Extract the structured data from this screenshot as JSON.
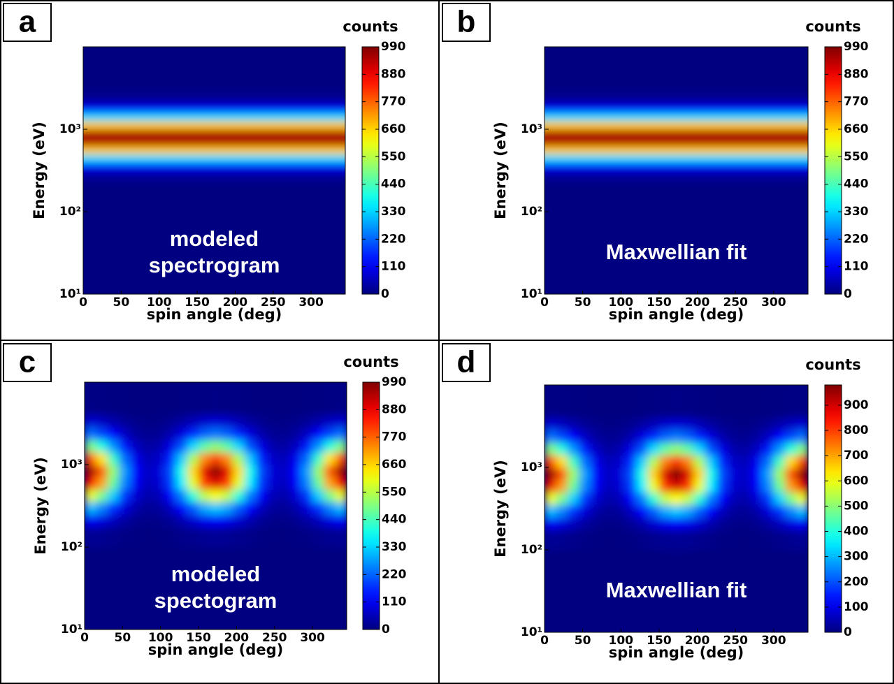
{
  "chart_data": [
    {
      "type": "heatmap",
      "panel": "a",
      "colorbar_label": "counts",
      "xlabel": "spin angle (deg)",
      "ylabel": "Energy (eV)",
      "annotation": [
        "modeled",
        "spectrogram"
      ],
      "colormap": "jet",
      "yscale": "log",
      "xlim": [
        0,
        345
      ],
      "ylim": [
        10,
        10000
      ],
      "xticks": [
        0,
        50,
        100,
        150,
        200,
        250,
        300
      ],
      "yticks": [
        {
          "value": 10,
          "label": "10¹"
        },
        {
          "value": 100,
          "label": "10²"
        },
        {
          "value": 1000,
          "label": "10³"
        }
      ],
      "clim": [
        0,
        990
      ],
      "cticks": [
        0,
        110,
        220,
        330,
        440,
        550,
        660,
        770,
        880,
        990
      ],
      "x": [
        0,
        345
      ],
      "y": [
        10,
        200,
        251,
        316,
        398,
        501,
        631,
        794,
        1000,
        1259,
        1585,
        1995,
        2512,
        3162,
        10000
      ],
      "z": [
        [
          0
        ],
        [
          5
        ],
        [
          30
        ],
        [
          119
        ],
        [
          336
        ],
        [
          673
        ],
        [
          948
        ],
        [
          948
        ],
        [
          673
        ],
        [
          336
        ],
        [
          119
        ],
        [
          30
        ],
        [
          5
        ],
        [
          0
        ]
      ]
    },
    {
      "type": "heatmap",
      "panel": "b",
      "colorbar_label": "counts",
      "xlabel": "spin angle (deg)",
      "ylabel": "Energy (eV)",
      "annotation": [
        "Maxwellian fit"
      ],
      "colormap": "jet",
      "yscale": "log",
      "xlim": [
        0,
        345
      ],
      "ylim": [
        10,
        10000
      ],
      "xticks": [
        0,
        50,
        100,
        150,
        200,
        250,
        300
      ],
      "yticks": [
        {
          "value": 10,
          "label": "10¹"
        },
        {
          "value": 100,
          "label": "10²"
        },
        {
          "value": 1000,
          "label": "10³"
        }
      ],
      "clim": [
        0,
        990
      ],
      "cticks": [
        0,
        110,
        220,
        330,
        440,
        550,
        660,
        770,
        880,
        990
      ],
      "x": [
        0,
        345
      ],
      "y": [
        10,
        200,
        251,
        316,
        398,
        501,
        631,
        794,
        1000,
        1259,
        1585,
        1995,
        2512,
        3162,
        10000
      ],
      "z": [
        [
          0
        ],
        [
          5
        ],
        [
          30
        ],
        [
          119
        ],
        [
          336
        ],
        [
          673
        ],
        [
          948
        ],
        [
          948
        ],
        [
          673
        ],
        [
          336
        ],
        [
          119
        ],
        [
          30
        ],
        [
          5
        ],
        [
          0
        ]
      ]
    },
    {
      "type": "heatmap",
      "panel": "c",
      "colorbar_label": "counts",
      "xlabel": "spin angle (deg)",
      "ylabel": "Energy (eV)",
      "annotation": [
        "modeled",
        "spectogram"
      ],
      "colormap": "jet",
      "yscale": "log",
      "xlim": [
        0,
        345
      ],
      "ylim": [
        10,
        10000
      ],
      "xticks": [
        0,
        50,
        100,
        150,
        200,
        250,
        300
      ],
      "yticks": [
        {
          "value": 10,
          "label": "10¹"
        },
        {
          "value": 100,
          "label": "10²"
        },
        {
          "value": 1000,
          "label": "10³"
        }
      ],
      "clim": [
        0,
        990
      ],
      "cticks": [
        0,
        110,
        220,
        330,
        440,
        550,
        660,
        770,
        880,
        990
      ],
      "x": [
        0,
        15,
        30,
        45,
        60,
        75,
        90,
        105,
        120,
        135,
        150,
        165,
        180,
        195,
        210,
        225,
        240,
        255,
        270,
        285,
        300,
        315,
        330,
        345
      ],
      "y": [
        10,
        100,
        178,
        251,
        355,
        501,
        708,
        1000,
        1413,
        1995,
        2818,
        3981,
        10000
      ],
      "z": [
        [
          0,
          0,
          0,
          0,
          0,
          0,
          0,
          0,
          0,
          0,
          0,
          0,
          0,
          0,
          0,
          0,
          0,
          0,
          0,
          0,
          0,
          0,
          0
        ],
        [
          21,
          17,
          11,
          6,
          3,
          1,
          2,
          4,
          9,
          14,
          20,
          22,
          20,
          14,
          9,
          4,
          2,
          1,
          3,
          6,
          11,
          17,
          21
        ],
        [
          116,
          94,
          62,
          33,
          15,
          8,
          10,
          23,
          47,
          79,
          107,
          119,
          107,
          79,
          47,
          23,
          10,
          8,
          15,
          33,
          62,
          94,
          116
        ],
        [
          308,
          251,
          166,
          89,
          41,
          21,
          28,
          62,
          125,
          210,
          286,
          317,
          286,
          210,
          125,
          62,
          28,
          21,
          41,
          89,
          166,
          251,
          308
        ],
        [
          598,
          486,
          322,
          173,
          79,
          42,
          54,
          120,
          242,
          406,
          554,
          614,
          554,
          406,
          242,
          120,
          54,
          42,
          79,
          173,
          322,
          486,
          598
        ],
        [
          872,
          710,
          470,
          252,
          116,
          61,
          79,
          175,
          354,
          593,
          808,
          896,
          808,
          593,
          354,
          175,
          79,
          61,
          116,
          252,
          470,
          710,
          872
        ],
        [
          960,
          781,
          517,
          278,
          127,
          67,
          87,
          192,
          389,
          652,
          889,
          986,
          889,
          652,
          389,
          192,
          87,
          67,
          127,
          278,
          517,
          781,
          960
        ],
        [
          790,
          643,
          426,
          229,
          105,
          55,
          71,
          158,
          321,
          537,
          732,
          812,
          732,
          537,
          321,
          158,
          71,
          55,
          105,
          229,
          426,
          643,
          790
        ],
        [
          492,
          400,
          265,
          142,
          65,
          34,
          44,
          98,
          199,
          334,
          455,
          505,
          455,
          334,
          199,
          98,
          44,
          34,
          65,
          142,
          265,
          400,
          492
        ],
        [
          231,
          188,
          125,
          67,
          31,
          16,
          21,
          46,
          94,
          157,
          214,
          238,
          214,
          157,
          94,
          46,
          21,
          16,
          31,
          67,
          125,
          188,
          231
        ],
        [
          80,
          65,
          43,
          23,
          11,
          6,
          7,
          16,
          32,
          54,
          74,
          82,
          74,
          54,
          32,
          16,
          7,
          6,
          11,
          23,
          43,
          65,
          80
        ],
        [
          6,
          5,
          3,
          2,
          1,
          0,
          1,
          1,
          2,
          4,
          5,
          6,
          5,
          4,
          2,
          1,
          1,
          0,
          1,
          2,
          3,
          5,
          6
        ]
      ]
    },
    {
      "type": "heatmap",
      "panel": "d",
      "colorbar_label": "counts",
      "xlabel": "spin angle (deg)",
      "ylabel": "Energy (eV)",
      "annotation": [
        "Maxwellian fit"
      ],
      "colormap": "jet",
      "yscale": "log",
      "xlim": [
        0,
        345
      ],
      "ylim": [
        10,
        10000
      ],
      "xticks": [
        0,
        50,
        100,
        150,
        200,
        250,
        300
      ],
      "yticks": [
        {
          "value": 10,
          "label": "10¹"
        },
        {
          "value": 100,
          "label": "10²"
        },
        {
          "value": 1000,
          "label": "10³"
        }
      ],
      "clim": [
        0,
        980
      ],
      "cticks": [
        0,
        100,
        200,
        300,
        400,
        500,
        600,
        700,
        800,
        900
      ],
      "x": [
        0,
        15,
        30,
        45,
        60,
        75,
        90,
        105,
        120,
        135,
        150,
        165,
        180,
        195,
        210,
        225,
        240,
        255,
        270,
        285,
        300,
        315,
        330,
        345
      ],
      "y": [
        10,
        100,
        178,
        251,
        355,
        501,
        708,
        1000,
        1413,
        1995,
        2818,
        3981,
        10000
      ],
      "z": [
        [
          0,
          0,
          0,
          0,
          0,
          0,
          0,
          0,
          0,
          0,
          0,
          0,
          0,
          0,
          0,
          0,
          0,
          0,
          0,
          0,
          0,
          0,
          0
        ],
        [
          21,
          17,
          11,
          6,
          3,
          1,
          2,
          4,
          9,
          14,
          20,
          22,
          20,
          14,
          9,
          4,
          2,
          1,
          3,
          6,
          11,
          17,
          21
        ],
        [
          116,
          94,
          62,
          33,
          15,
          8,
          10,
          23,
          47,
          79,
          107,
          119,
          107,
          79,
          47,
          23,
          10,
          8,
          15,
          33,
          62,
          94,
          116
        ],
        [
          308,
          251,
          166,
          89,
          41,
          21,
          28,
          62,
          125,
          210,
          286,
          317,
          286,
          210,
          125,
          62,
          28,
          21,
          41,
          89,
          166,
          251,
          308
        ],
        [
          598,
          486,
          322,
          173,
          79,
          42,
          54,
          120,
          242,
          406,
          554,
          614,
          554,
          406,
          242,
          120,
          54,
          42,
          79,
          173,
          322,
          486,
          598
        ],
        [
          872,
          710,
          470,
          252,
          116,
          61,
          79,
          175,
          354,
          593,
          808,
          896,
          808,
          593,
          354,
          175,
          79,
          61,
          116,
          252,
          470,
          710,
          872
        ],
        [
          960,
          781,
          517,
          278,
          127,
          67,
          87,
          192,
          389,
          652,
          889,
          986,
          889,
          652,
          389,
          192,
          87,
          67,
          127,
          278,
          517,
          781,
          960
        ],
        [
          790,
          643,
          426,
          229,
          105,
          55,
          71,
          158,
          321,
          537,
          732,
          812,
          732,
          537,
          321,
          158,
          71,
          55,
          105,
          229,
          426,
          643,
          790
        ],
        [
          492,
          400,
          265,
          142,
          65,
          34,
          44,
          98,
          199,
          334,
          455,
          505,
          455,
          334,
          199,
          98,
          44,
          34,
          65,
          142,
          265,
          400,
          492
        ],
        [
          231,
          188,
          125,
          67,
          31,
          16,
          21,
          46,
          94,
          157,
          214,
          238,
          214,
          157,
          94,
          46,
          21,
          16,
          31,
          67,
          125,
          188,
          231
        ],
        [
          80,
          65,
          43,
          23,
          11,
          6,
          7,
          16,
          32,
          54,
          74,
          82,
          74,
          54,
          32,
          16,
          7,
          6,
          11,
          23,
          43,
          65,
          80
        ],
        [
          6,
          5,
          3,
          2,
          1,
          0,
          1,
          1,
          2,
          4,
          5,
          6,
          5,
          4,
          2,
          1,
          1,
          0,
          1,
          2,
          3,
          5,
          6
        ]
      ]
    }
  ]
}
